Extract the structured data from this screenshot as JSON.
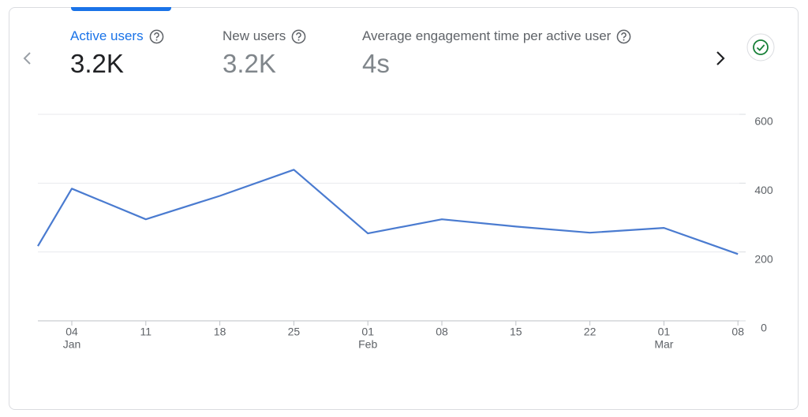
{
  "metrics": [
    {
      "label": "Active users",
      "value": "3.2K"
    },
    {
      "label": "New users",
      "value": "3.2K"
    },
    {
      "label": "Average engagement time per active user",
      "value": "4s"
    }
  ],
  "chart_data": {
    "type": "line",
    "categories": [
      null,
      "04",
      "11",
      "18",
      "25",
      "01",
      "08",
      "15",
      "22",
      "01",
      "08"
    ],
    "category_months": [
      null,
      "Jan",
      null,
      null,
      null,
      "Feb",
      null,
      null,
      null,
      "Mar",
      null
    ],
    "series": [
      {
        "name": "Active users",
        "color": "#4a7bd0",
        "values": [
          217,
          384,
          295,
          363,
          439,
          254,
          295,
          274,
          256,
          270,
          194
        ]
      }
    ],
    "ylim": [
      0,
      600
    ],
    "yticks": [
      0,
      200,
      400,
      600
    ],
    "grid": true
  }
}
